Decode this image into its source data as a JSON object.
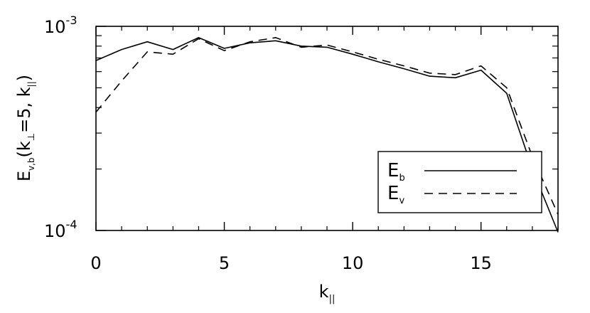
{
  "chart_data": {
    "type": "line",
    "title": "",
    "xlabel": "k",
    "xlabel_sub": "||",
    "ylabel_parts": {
      "E": "E",
      "E_sub": "v,b",
      "open": "(k",
      "perp_sub": "⊥",
      "mid": "=5, k",
      "par_sub": "||",
      "close": ")"
    },
    "xlim": [
      0,
      18
    ],
    "ylim": [
      0.0001,
      0.001
    ],
    "yscale": "log",
    "xticks": [
      0,
      5,
      10,
      15
    ],
    "yticks": [
      {
        "value": 0.001,
        "base": "10",
        "exp": "-3"
      },
      {
        "value": 0.0001,
        "base": "10",
        "exp": "-4"
      }
    ],
    "legend_position": "bottom-right",
    "series": [
      {
        "name": "E",
        "name_sub": "b",
        "style": "solid",
        "x": [
          0,
          1,
          2,
          3,
          4,
          5,
          6,
          7,
          8,
          9,
          10,
          11,
          12,
          13,
          14,
          15,
          16,
          17,
          18
        ],
        "values": [
          0.00068,
          0.00077,
          0.00084,
          0.00077,
          0.00088,
          0.00078,
          0.00083,
          0.00085,
          0.0008,
          0.00079,
          0.00073,
          0.00067,
          0.00062,
          0.00057,
          0.00056,
          0.00061,
          0.00047,
          0.0002,
          9.8e-05
        ]
      },
      {
        "name": "E",
        "name_sub": "v",
        "style": "dashed",
        "x": [
          0,
          1,
          2,
          3,
          4,
          5,
          6,
          7,
          8,
          9,
          10,
          11,
          12,
          13,
          14,
          15,
          16,
          17,
          18
        ],
        "values": [
          0.00038,
          0.00054,
          0.00075,
          0.00073,
          0.00087,
          0.00076,
          0.00084,
          0.00088,
          0.00079,
          0.00081,
          0.00075,
          0.00069,
          0.00064,
          0.00059,
          0.00058,
          0.00064,
          0.0005,
          0.00023,
          0.00012
        ]
      }
    ]
  }
}
